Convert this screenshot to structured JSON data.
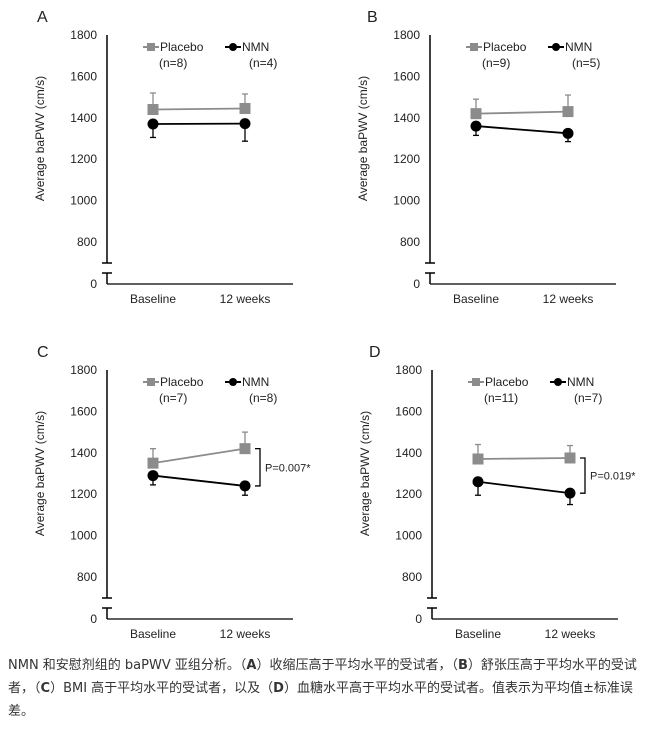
{
  "chart_data": [
    {
      "type": "line",
      "panel_label": "A",
      "ylabel": "Average baPWV (cm/s)",
      "categories": [
        "Baseline",
        "12 weeks"
      ],
      "yticks": [
        0,
        800,
        1000,
        1200,
        1400,
        1600,
        1800
      ],
      "ylim": [
        0,
        1800
      ],
      "axis_break": true,
      "series": [
        {
          "name": "Placebo",
          "n_label": "(n=8)",
          "values": [
            1440,
            1445
          ],
          "sem": [
            80,
            70
          ],
          "color": "#8c8c8c",
          "marker": "square"
        },
        {
          "name": "NMN",
          "n_label": "(n=4)",
          "values": [
            1370,
            1372
          ],
          "sem": [
            65,
            85
          ],
          "color": "#000000",
          "marker": "circle"
        }
      ],
      "annotation": ""
    },
    {
      "type": "line",
      "panel_label": "B",
      "ylabel": "Average baPWV (cm/s)",
      "categories": [
        "Baseline",
        "12 weeks"
      ],
      "yticks": [
        0,
        800,
        1000,
        1200,
        1400,
        1600,
        1800
      ],
      "ylim": [
        0,
        1800
      ],
      "axis_break": true,
      "series": [
        {
          "name": "Placebo",
          "n_label": "(n=9)",
          "values": [
            1420,
            1430
          ],
          "sem": [
            70,
            80
          ],
          "color": "#8c8c8c",
          "marker": "square"
        },
        {
          "name": "NMN",
          "n_label": "(n=5)",
          "values": [
            1360,
            1325
          ],
          "sem": [
            45,
            40
          ],
          "color": "#000000",
          "marker": "circle"
        }
      ],
      "annotation": ""
    },
    {
      "type": "line",
      "panel_label": "C",
      "ylabel": "Average baPWV (cm/s)",
      "categories": [
        "Baseline",
        "12 weeks"
      ],
      "yticks": [
        0,
        800,
        1000,
        1200,
        1400,
        1600,
        1800
      ],
      "ylim": [
        0,
        1800
      ],
      "axis_break": true,
      "series": [
        {
          "name": "Placebo",
          "n_label": "(n=7)",
          "values": [
            1350,
            1420
          ],
          "sem": [
            70,
            80
          ],
          "color": "#8c8c8c",
          "marker": "square"
        },
        {
          "name": "NMN",
          "n_label": "(n=8)",
          "values": [
            1290,
            1240
          ],
          "sem": [
            45,
            45
          ],
          "color": "#000000",
          "marker": "circle"
        }
      ],
      "annotation": "P=0.007*"
    },
    {
      "type": "line",
      "panel_label": "D",
      "ylabel": "Average baPWV (cm/s)",
      "categories": [
        "Baseline",
        "12 weeks"
      ],
      "yticks": [
        0,
        800,
        1000,
        1200,
        1400,
        1600,
        1800
      ],
      "ylim": [
        0,
        1800
      ],
      "axis_break": true,
      "series": [
        {
          "name": "Placebo",
          "n_label": "(n=11)",
          "values": [
            1370,
            1375
          ],
          "sem": [
            70,
            60
          ],
          "color": "#8c8c8c",
          "marker": "square"
        },
        {
          "name": "NMN",
          "n_label": "(n=7)",
          "values": [
            1260,
            1205
          ],
          "sem": [
            65,
            55
          ],
          "color": "#000000",
          "marker": "circle"
        }
      ],
      "annotation": "P=0.019*"
    }
  ],
  "caption": {
    "t1": "NMN 和安慰剂组的 baPWV 亚组分析。（",
    "a": "A",
    "t2": "）收缩压高于平均水平的受试者，（",
    "b": "B",
    "t3": "）舒张压高于平均水平的受试者，（",
    "c": "C",
    "t4": "）BMI 高于平均水平的受试者，以及（",
    "d": "D",
    "t5": "）血糖水平高于平均水平的受试者。值表示为平均值±标准误差。"
  }
}
